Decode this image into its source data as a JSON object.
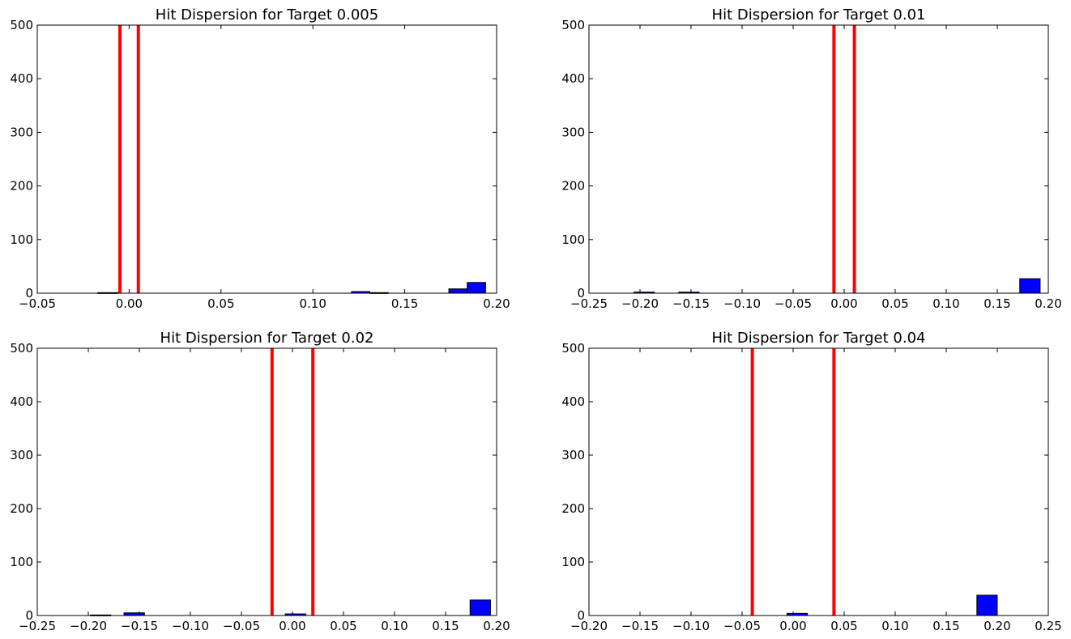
{
  "chart_data": [
    {
      "type": "bar",
      "title": "Hit Dispersion for Target 0.005",
      "xlim": [
        -0.05,
        0.2
      ],
      "ylim": [
        0,
        500
      ],
      "xticks": [
        "−0.05",
        "0.00",
        "0.05",
        "0.10",
        "0.15",
        "0.20"
      ],
      "xtick_values": [
        -0.05,
        0.0,
        0.05,
        0.1,
        0.15,
        0.2
      ],
      "yticks": [
        "0",
        "100",
        "200",
        "300",
        "400",
        "500"
      ],
      "ytick_values": [
        0,
        100,
        200,
        300,
        400,
        500
      ],
      "target_lines": [
        -0.005,
        0.005
      ],
      "bins": [
        {
          "x0": -0.017,
          "x1": -0.006,
          "count": 1
        },
        {
          "x0": 0.121,
          "x1": 0.131,
          "count": 3
        },
        {
          "x0": 0.131,
          "x1": 0.141,
          "count": 1
        },
        {
          "x0": 0.174,
          "x1": 0.184,
          "count": 8
        },
        {
          "x0": 0.184,
          "x1": 0.194,
          "count": 20
        }
      ]
    },
    {
      "type": "bar",
      "title": "Hit Dispersion for Target 0.01",
      "xlim": [
        -0.25,
        0.2
      ],
      "ylim": [
        0,
        500
      ],
      "xticks": [
        "−0.25",
        "−0.20",
        "−0.15",
        "−0.10",
        "−0.05",
        "0.00",
        "0.05",
        "0.10",
        "0.15",
        "0.20"
      ],
      "xtick_values": [
        -0.25,
        -0.2,
        -0.15,
        -0.1,
        -0.05,
        0.0,
        0.05,
        0.1,
        0.15,
        0.2
      ],
      "yticks": [
        "0",
        "100",
        "200",
        "300",
        "400",
        "500"
      ],
      "ytick_values": [
        0,
        100,
        200,
        300,
        400,
        500
      ],
      "target_lines": [
        -0.01,
        0.01
      ],
      "bins": [
        {
          "x0": -0.206,
          "x1": -0.186,
          "count": 2
        },
        {
          "x0": -0.162,
          "x1": -0.142,
          "count": 2
        },
        {
          "x0": 0.172,
          "x1": 0.192,
          "count": 27
        }
      ]
    },
    {
      "type": "bar",
      "title": "Hit Dispersion for Target 0.02",
      "xlim": [
        -0.25,
        0.2
      ],
      "ylim": [
        0,
        500
      ],
      "xticks": [
        "−0.25",
        "−0.20",
        "−0.15",
        "−0.10",
        "−0.05",
        "0.00",
        "0.05",
        "0.10",
        "0.15",
        "0.20"
      ],
      "xtick_values": [
        -0.25,
        -0.2,
        -0.15,
        -0.1,
        -0.05,
        0.0,
        0.05,
        0.1,
        0.15,
        0.2
      ],
      "yticks": [
        "0",
        "100",
        "200",
        "300",
        "400",
        "500"
      ],
      "ytick_values": [
        0,
        100,
        200,
        300,
        400,
        500
      ],
      "target_lines": [
        -0.02,
        0.02
      ],
      "bins": [
        {
          "x0": -0.198,
          "x1": -0.178,
          "count": 1
        },
        {
          "x0": -0.165,
          "x1": -0.145,
          "count": 5
        },
        {
          "x0": -0.007,
          "x1": 0.013,
          "count": 3
        },
        {
          "x0": 0.174,
          "x1": 0.194,
          "count": 29
        }
      ]
    },
    {
      "type": "bar",
      "title": "Hit Dispersion for Target 0.04",
      "xlim": [
        -0.2,
        0.25
      ],
      "ylim": [
        0,
        500
      ],
      "xticks": [
        "−0.20",
        "−0.15",
        "−0.10",
        "−0.05",
        "0.00",
        "0.05",
        "0.10",
        "0.15",
        "0.20",
        "0.25"
      ],
      "xtick_values": [
        -0.2,
        -0.15,
        -0.1,
        -0.05,
        0.0,
        0.05,
        0.1,
        0.15,
        0.2,
        0.25
      ],
      "yticks": [
        "0",
        "100",
        "200",
        "300",
        "400",
        "500"
      ],
      "ytick_values": [
        0,
        100,
        200,
        300,
        400,
        500
      ],
      "target_lines": [
        -0.04,
        0.04
      ],
      "bins": [
        {
          "x0": -0.006,
          "x1": 0.014,
          "count": 4
        },
        {
          "x0": 0.18,
          "x1": 0.2,
          "count": 38
        }
      ]
    }
  ],
  "colors": {
    "bar_fill": "#0000ff",
    "bar_edge": "#000000",
    "target_line": "#ff0000",
    "axes": "#000000",
    "background": "#ffffff"
  }
}
